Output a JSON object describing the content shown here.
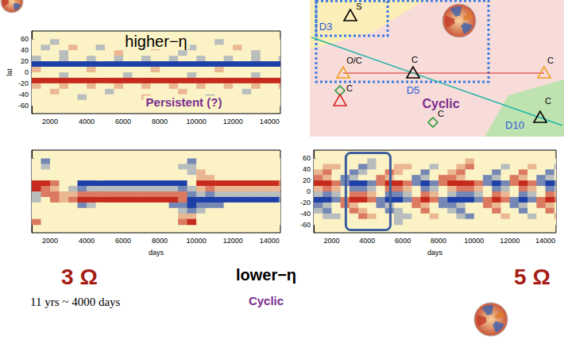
{
  "chart_data": [
    {
      "type": "heatmap",
      "title": "higher−η",
      "annotations": [
        "Persistent (?)"
      ],
      "x": [
        1250,
        1750,
        2250,
        2750,
        3250,
        3750,
        4250,
        4750,
        5250,
        5750,
        6250,
        6750,
        7250,
        7750,
        8250,
        8750,
        9250,
        9750,
        10250,
        10750,
        11250,
        11750,
        12250,
        12750,
        13250,
        13750,
        14250,
        14750
      ],
      "y": [
        55,
        45,
        35,
        25,
        15,
        5,
        -5,
        -15,
        -25,
        -35,
        -45,
        -55
      ],
      "z": [
        [
          0,
          0,
          -0.3,
          0,
          0,
          0,
          0,
          0,
          0,
          0,
          0.3,
          0,
          0,
          0,
          0,
          0,
          0,
          0,
          0,
          0,
          -0.3,
          0,
          0,
          0,
          0,
          0,
          0,
          0
        ],
        [
          0,
          -0.3,
          0,
          0,
          0.3,
          0,
          0,
          -0.3,
          0,
          0,
          0,
          0,
          0,
          0.3,
          0,
          0,
          0,
          -0.3,
          0,
          0,
          0,
          0,
          0.3,
          0,
          0,
          0,
          0,
          0
        ],
        [
          0,
          0,
          0,
          -0.3,
          0,
          0,
          0,
          0,
          0,
          0.3,
          0,
          0,
          0,
          0,
          0,
          0,
          -0.3,
          0,
          0,
          0,
          0,
          0,
          0,
          0,
          -0.3,
          0,
          0,
          0
        ],
        [
          -0.3,
          0,
          0,
          -0.3,
          0,
          0,
          -0.3,
          0,
          0,
          -0.3,
          0,
          0,
          -0.3,
          0,
          0,
          -0.3,
          0,
          0,
          -0.3,
          0,
          0,
          -0.3,
          0,
          0,
          -0.3,
          0,
          0,
          -0.3
        ],
        [
          -1,
          -1,
          -1,
          -1,
          -1,
          -1,
          -1,
          -1,
          -1,
          -1,
          -1,
          -1,
          -1,
          -1,
          -1,
          -1,
          -1,
          -1,
          -1,
          -1,
          -1,
          -1,
          -1,
          -1,
          -1,
          -1,
          -1,
          -1
        ],
        [
          0.3,
          0,
          0,
          0,
          0,
          0,
          0.3,
          0,
          0,
          0,
          0,
          0,
          0,
          0.3,
          0,
          0,
          0,
          0,
          0,
          0,
          0.3,
          0,
          0,
          0,
          0,
          0,
          0,
          0
        ],
        [
          0,
          0,
          0,
          -0.3,
          0,
          0,
          0,
          0,
          0,
          0,
          -0.3,
          0,
          0,
          0,
          0,
          0,
          0,
          -0.3,
          0,
          0,
          0,
          0,
          0,
          0,
          -0.3,
          0,
          0,
          0
        ],
        [
          1,
          1,
          1,
          1,
          1,
          1,
          1,
          1,
          1,
          1,
          1,
          1,
          1,
          1,
          1,
          1,
          1,
          1,
          1,
          1,
          1,
          1,
          1,
          1,
          1,
          1,
          1,
          1
        ],
        [
          0.3,
          0,
          0,
          0.3,
          0,
          0,
          0.3,
          0,
          0,
          0.3,
          0,
          0,
          0.3,
          0,
          0,
          0.3,
          0,
          0,
          0.3,
          0,
          0,
          0.3,
          0,
          0,
          0.3,
          0,
          0,
          0.3
        ],
        [
          0,
          0,
          0.3,
          0,
          0,
          0,
          0,
          0,
          -0.3,
          0,
          0,
          0,
          0,
          0,
          0,
          0,
          0.3,
          0,
          0,
          0,
          0,
          0,
          0,
          -0.3,
          0,
          0,
          0,
          0
        ],
        [
          0,
          0,
          0,
          0,
          0,
          -0.3,
          0,
          0,
          0,
          0,
          0,
          0,
          0.3,
          0,
          0,
          0,
          0,
          0,
          0,
          -0.3,
          0,
          0,
          0,
          0,
          0,
          0,
          0,
          0
        ],
        [
          0,
          0,
          0,
          0,
          0,
          0,
          0,
          0,
          0,
          0,
          0,
          0,
          0,
          0,
          0,
          0,
          0,
          0,
          0,
          0,
          0,
          0,
          0,
          0,
          0,
          0,
          0,
          0
        ]
      ],
      "zlim": [
        -1,
        1
      ],
      "xlim": [
        1000,
        14600
      ],
      "ylim": [
        -75,
        75
      ],
      "xticks": [
        2000,
        4000,
        6000,
        8000,
        10000,
        12000,
        14000
      ],
      "yticks": [
        -60,
        -40,
        -20,
        0,
        20,
        40,
        60
      ],
      "ylabel": "lat",
      "grid": false
    },
    {
      "type": "heatmap",
      "x": [
        1250,
        1750,
        2250,
        2750,
        3250,
        3750,
        4250,
        4750,
        5250,
        5750,
        6250,
        6750,
        7250,
        7750,
        8250,
        8750,
        9250,
        9750,
        10250,
        10750,
        11250,
        11750,
        12250,
        12750,
        13250,
        13750,
        14250,
        14750
      ],
      "y": [
        55,
        45,
        35,
        25,
        15,
        5,
        -5,
        -15,
        -25,
        -35,
        -45,
        -55
      ],
      "z": [
        [
          0,
          -0.6,
          0,
          0,
          0,
          0,
          0,
          0,
          0,
          0,
          0,
          0,
          0,
          0,
          0,
          0,
          0,
          -0.6,
          0,
          0,
          0,
          0,
          0,
          0,
          0,
          0,
          0,
          0
        ],
        [
          0,
          -0.3,
          0,
          0,
          0,
          0,
          0,
          0,
          0,
          0,
          0,
          0,
          0,
          0,
          0,
          0,
          -0.3,
          -0.3,
          0,
          0,
          0,
          0,
          0,
          0,
          0,
          0,
          0,
          0
        ],
        [
          0,
          0,
          0,
          0,
          0,
          0,
          0,
          0,
          0,
          0,
          0,
          0,
          0,
          0,
          0,
          0,
          0,
          -0.3,
          0.3,
          0,
          0,
          0,
          0,
          0,
          0,
          0,
          0,
          0
        ],
        [
          0,
          0,
          0,
          0,
          0,
          0,
          0,
          0,
          0,
          0,
          0,
          0,
          0,
          0,
          0,
          0,
          0,
          0,
          0.3,
          0.3,
          0,
          0,
          0,
          0,
          0,
          0,
          0,
          0
        ],
        [
          1,
          1,
          0.6,
          0,
          0,
          -1,
          -1,
          -1,
          -1,
          -1,
          -1,
          -1,
          -1,
          -1,
          -1,
          -1,
          -1,
          0,
          1,
          1,
          1,
          1,
          1,
          1,
          1,
          1,
          1,
          0.6
        ],
        [
          1,
          0.6,
          0.3,
          0,
          -0.3,
          -0.6,
          -0.3,
          -0.3,
          -0.3,
          -0.3,
          -0.3,
          -0.3,
          -0.3,
          -0.3,
          -0.3,
          -0.3,
          -0.6,
          -0.3,
          0.3,
          0.6,
          0.3,
          0.3,
          0.3,
          0.3,
          0.3,
          0.3,
          0.3,
          0.3
        ],
        [
          -0.3,
          0.6,
          0.6,
          0.3,
          0.3,
          0.6,
          0.6,
          0.6,
          0.6,
          0.6,
          0.6,
          0.6,
          0.6,
          0.6,
          0.6,
          0.6,
          0.6,
          -0.6,
          -0.3,
          -0.6,
          -0.3,
          -0.3,
          -0.3,
          -0.3,
          -0.3,
          -0.3,
          -0.3,
          -0.3
        ],
        [
          -0.3,
          0,
          0.6,
          0.3,
          0.6,
          1,
          1,
          1,
          1,
          1,
          1,
          1,
          1,
          1,
          1,
          1,
          0.6,
          -1,
          -1,
          -1,
          -1,
          -1,
          -1,
          -1,
          -1,
          -1,
          -1,
          -0.6
        ],
        [
          0,
          0,
          0,
          0,
          0,
          -0.6,
          -0.3,
          0,
          0,
          0,
          0,
          0,
          0,
          0,
          0,
          -0.6,
          -0.6,
          -1,
          -0.6,
          -0.6,
          -0.6,
          0,
          0,
          0,
          0,
          0,
          0,
          0
        ],
        [
          0,
          0,
          0,
          0,
          0,
          0,
          0,
          0,
          0,
          0,
          0,
          0,
          0,
          0,
          0,
          0,
          -0.3,
          -0.6,
          -0.3,
          0,
          0,
          0,
          0,
          0,
          0,
          0,
          0,
          0
        ],
        [
          0,
          0,
          0,
          0,
          0,
          0,
          0,
          0,
          0,
          0,
          0,
          0,
          0,
          0,
          0,
          0,
          0.3,
          0.3,
          0,
          0,
          0,
          0,
          0,
          0,
          0,
          0,
          0,
          0
        ],
        [
          0.6,
          0,
          0,
          0,
          0,
          0,
          0,
          0,
          0,
          0,
          0,
          0,
          0,
          0,
          0,
          0,
          0.6,
          1,
          0,
          0,
          0,
          0,
          0,
          0,
          0,
          0,
          0,
          0
        ]
      ],
      "zlim": [
        -1,
        1
      ],
      "xlim": [
        1000,
        14600
      ],
      "ylim": [
        -75,
        75
      ],
      "xticks": [
        2000,
        4000,
        6000,
        8000,
        10000,
        12000,
        14000
      ],
      "yticks": [
        -60,
        -40,
        -20,
        0,
        20,
        40,
        60
      ],
      "xlabel": "days",
      "tick_labels": "x",
      "grid": false
    },
    {
      "type": "heatmap",
      "x": [
        1250,
        1750,
        2250,
        2750,
        3250,
        3750,
        4250,
        4750,
        5250,
        5750,
        6250,
        6750,
        7250,
        7750,
        8250,
        8750,
        9250,
        9750,
        10250,
        10750,
        11250,
        11750,
        12250,
        12750,
        13250,
        13750,
        14250,
        14750
      ],
      "y": [
        55,
        45,
        35,
        25,
        15,
        5,
        -5,
        -15,
        -25,
        -35,
        -45,
        -55
      ],
      "z": [
        [
          0,
          0,
          0,
          0,
          0,
          0,
          -0.3,
          0,
          0,
          0,
          0,
          0,
          0,
          0,
          0,
          0,
          0,
          0.3,
          0,
          0,
          0,
          0,
          0,
          0,
          0,
          0,
          0,
          0
        ],
        [
          0,
          0.3,
          0.3,
          0,
          0,
          -0.6,
          -0.3,
          0,
          0,
          0.3,
          0.3,
          0,
          0,
          -0.3,
          0,
          0,
          0.3,
          0.6,
          0,
          0,
          0,
          -0.3,
          0,
          0,
          0.3,
          0,
          0,
          -0.3
        ],
        [
          0.3,
          0.6,
          0,
          0,
          -0.6,
          -0.3,
          0,
          0,
          0.6,
          0.3,
          0,
          0,
          -0.6,
          0,
          0,
          0.3,
          0.6,
          0,
          0,
          0,
          -0.6,
          0,
          0,
          0.6,
          0,
          0,
          -0.6,
          0
        ],
        [
          0.6,
          0.3,
          0,
          -0.6,
          -0.3,
          0,
          0,
          0.6,
          0.3,
          0,
          0,
          -0.6,
          -0.3,
          0,
          0.6,
          0.6,
          0.3,
          0,
          0,
          -0.6,
          -0.3,
          0,
          0.6,
          0.3,
          0,
          -0.6,
          -0.3,
          0
        ],
        [
          1,
          1,
          0.6,
          -0.6,
          -1,
          -1,
          -0.6,
          0.6,
          1,
          1,
          0.6,
          -0.6,
          -1,
          -0.6,
          0.6,
          1,
          1,
          1,
          0.6,
          -0.6,
          -1,
          -0.6,
          0.6,
          1,
          0.6,
          -0.6,
          -1,
          -0.6
        ],
        [
          0.3,
          0.6,
          0.3,
          0,
          -0.6,
          -0.6,
          -0.3,
          0,
          0.6,
          0.6,
          0.3,
          0,
          -0.6,
          -0.3,
          0,
          0.3,
          0.6,
          0.6,
          0.3,
          0,
          -0.6,
          -0.3,
          0,
          0.6,
          0.3,
          0,
          -0.6,
          -0.3
        ],
        [
          -0.3,
          -0.6,
          -0.3,
          0,
          0.6,
          0.6,
          0.3,
          0,
          -0.6,
          -0.6,
          -0.3,
          0,
          0.6,
          0.3,
          0,
          -0.3,
          -0.6,
          -0.6,
          -0.3,
          0,
          0.6,
          0.3,
          0,
          -0.6,
          -0.3,
          0,
          0.6,
          0.3
        ],
        [
          -1,
          -1,
          -0.6,
          0.6,
          1,
          1,
          0.6,
          -0.6,
          -1,
          -1,
          -0.6,
          0.6,
          1,
          0.6,
          -0.6,
          -1,
          -1,
          -1,
          -0.6,
          0.6,
          1,
          0.6,
          -0.6,
          -1,
          -0.6,
          0.6,
          1,
          0.6
        ],
        [
          -0.6,
          -0.3,
          0,
          0.6,
          0.3,
          0,
          0,
          -0.6,
          -0.3,
          0,
          0,
          0.6,
          0.3,
          0,
          -0.6,
          -0.6,
          -0.3,
          0,
          0,
          0.6,
          0.3,
          0,
          -0.6,
          -0.3,
          0,
          0.6,
          0.3,
          0
        ],
        [
          -0.3,
          -0.6,
          0,
          0,
          0.6,
          0.3,
          0,
          0,
          -0.6,
          -0.3,
          0,
          0,
          0.6,
          0,
          0,
          -0.3,
          -0.6,
          0,
          0,
          0,
          0.6,
          0,
          0,
          -0.6,
          0,
          0,
          0.6,
          0
        ],
        [
          0,
          -0.3,
          -0.3,
          0,
          0,
          0.6,
          0.3,
          0,
          0,
          -0.3,
          -0.3,
          0,
          0,
          0.3,
          0,
          0,
          -0.3,
          -0.6,
          0,
          0,
          0,
          0.3,
          0,
          0,
          -0.3,
          0,
          0,
          0.3
        ],
        [
          0,
          0,
          0,
          0,
          0,
          0,
          0,
          0,
          0,
          -0.3,
          0,
          0,
          0,
          0,
          0,
          0,
          0,
          0,
          0,
          0,
          0,
          0,
          0,
          0,
          0,
          0,
          0,
          0
        ]
      ],
      "zlim": [
        -1,
        1
      ],
      "xlim": [
        1000,
        14600
      ],
      "ylim": [
        -75,
        75
      ],
      "xticks": [
        2000,
        4000,
        6000,
        8000,
        10000,
        12000,
        14000
      ],
      "yticks": [
        -60,
        -40,
        -20,
        0,
        20,
        40,
        60
      ],
      "xlabel": "days",
      "grid": false,
      "highlight": {
        "xlim": [
          2800,
          5300
        ],
        "ylim": [
          -70,
          70
        ]
      }
    }
  ],
  "diagram": {
    "regions": [
      "D3",
      "D5",
      "D10"
    ],
    "regime": "Cyclic",
    "markers": [
      {
        "shape": "triangle",
        "color": "black",
        "label": "S"
      },
      {
        "shape": "triangle",
        "color": "orange",
        "label": "O/C"
      },
      {
        "shape": "triangle",
        "color": "black",
        "label": "C"
      },
      {
        "shape": "triangle",
        "color": "orange",
        "label": "C"
      },
      {
        "shape": "diamond",
        "color": "green",
        "label": "C"
      },
      {
        "shape": "triangle",
        "color": "red"
      },
      {
        "shape": "diamond",
        "color": "green",
        "label": "C"
      },
      {
        "shape": "triangle",
        "color": "black",
        "label": "C"
      }
    ]
  },
  "captions": [
    "3 Ω",
    "11 yrs ~ 4000 days",
    "lower−η",
    "Cyclic",
    "5 Ω"
  ]
}
